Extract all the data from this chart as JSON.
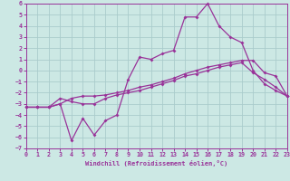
{
  "xlabel": "Windchill (Refroidissement éolien,°C)",
  "bg_color": "#cce8e4",
  "grid_color": "#aacccc",
  "line_color": "#993399",
  "xlim": [
    0,
    23
  ],
  "ylim": [
    -7,
    6
  ],
  "xticks": [
    0,
    1,
    2,
    3,
    4,
    5,
    6,
    7,
    8,
    9,
    10,
    11,
    12,
    13,
    14,
    15,
    16,
    17,
    18,
    19,
    20,
    21,
    22,
    23
  ],
  "yticks": [
    -7,
    -6,
    -5,
    -4,
    -3,
    -2,
    -1,
    0,
    1,
    2,
    3,
    4,
    5,
    6
  ],
  "line1_y": [
    -3.3,
    -3.3,
    -3.3,
    -3.0,
    -2.5,
    -2.3,
    -2.3,
    -2.2,
    -2.0,
    -1.8,
    -1.5,
    -1.3,
    -1.0,
    -0.7,
    -0.3,
    0.0,
    0.3,
    0.5,
    0.7,
    0.9,
    0.9,
    -0.2,
    -0.5,
    -2.3
  ],
  "line2_y": [
    -3.3,
    -3.3,
    -3.3,
    -3.0,
    -6.3,
    -4.3,
    -5.8,
    -4.5,
    -4.0,
    -0.8,
    1.2,
    1.0,
    1.5,
    1.8,
    4.8,
    4.8,
    6.0,
    4.0,
    3.0,
    2.5,
    0.0,
    -1.2,
    -1.8,
    -2.3
  ],
  "line3_y": [
    -3.3,
    -3.3,
    -3.3,
    -2.5,
    -2.8,
    -3.0,
    -3.0,
    -2.5,
    -2.2,
    -2.0,
    -1.8,
    -1.5,
    -1.2,
    -0.9,
    -0.5,
    -0.3,
    0.0,
    0.3,
    0.5,
    0.7,
    -0.2,
    -0.8,
    -1.5,
    -2.3
  ]
}
